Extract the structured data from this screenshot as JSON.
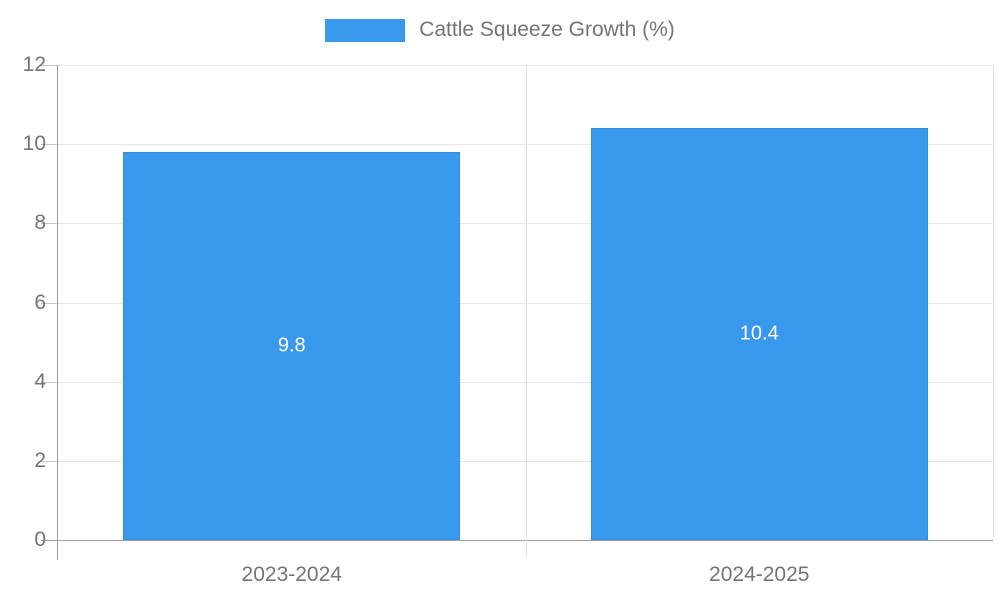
{
  "colors": {
    "bar": "#3899ec",
    "grid": "#e6e6e6",
    "axis": "#9e9e9e",
    "text": "#757575",
    "bar_label_text": "#ffffff",
    "background": "#ffffff"
  },
  "chart_data": {
    "type": "bar",
    "legend": "Cattle Squeeze Growth (%)",
    "legend_position": "top",
    "categories": [
      "2023-2024",
      "2024-2025"
    ],
    "values": [
      9.8,
      10.4
    ],
    "value_labels": [
      "9.8",
      "10.4"
    ],
    "title": "",
    "xlabel": "",
    "ylabel": "",
    "ylim": [
      0,
      12
    ],
    "yticks": [
      0,
      2,
      4,
      6,
      8,
      10,
      12
    ],
    "ytick_labels": [
      "0",
      "2",
      "4",
      "6",
      "8",
      "10",
      "12"
    ],
    "grid": true
  }
}
